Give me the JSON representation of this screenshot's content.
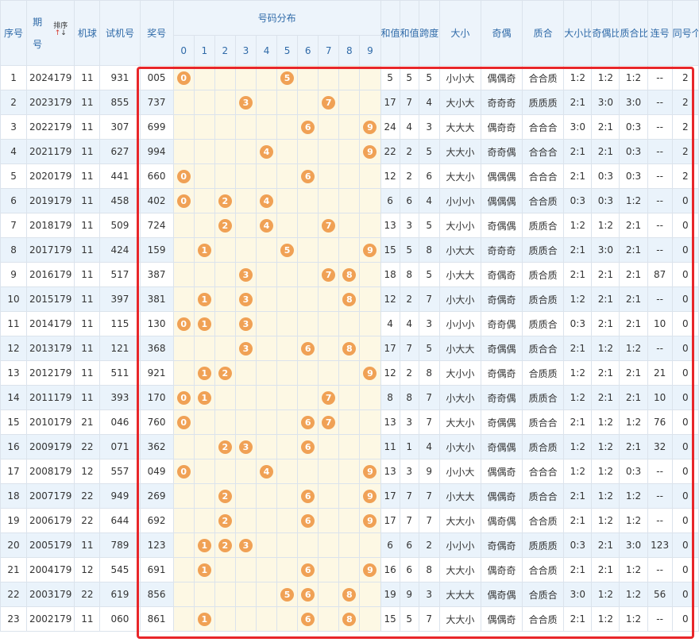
{
  "header": {
    "seq": "序号",
    "period": "期号",
    "sort_label": "排序",
    "machine": "机球",
    "trial": "试机号",
    "prize": "奖号",
    "distribution": "号码分布",
    "digits": [
      "0",
      "1",
      "2",
      "3",
      "4",
      "5",
      "6",
      "7",
      "8",
      "9"
    ],
    "sum": "和值",
    "sum_tail": "和值尾",
    "span": "跨度",
    "size": "大小",
    "odd_even": "奇偶",
    "prime": "质合",
    "size_ratio": "大小比",
    "oe_ratio": "奇偶比",
    "prime_ratio": "质合比",
    "consecutive": "连号",
    "same_count": "同号个数"
  },
  "colors": {
    "ball": "#f0a155",
    "highlight_border": "#e8262a",
    "header_bg": "#edf4fb",
    "digit_bg": "#fdf8e4"
  },
  "rows": [
    {
      "seq": "1",
      "period": "2024179",
      "machine": "11",
      "trial": "931",
      "prize": "005",
      "sum": "5",
      "tail": "5",
      "span": "5",
      "size": "小小大",
      "oe": "偶偶奇",
      "prime": "合合质",
      "sr": "1:2",
      "oer": "1:2",
      "pr": "1:2",
      "cons": "--",
      "same": "2"
    },
    {
      "seq": "2",
      "period": "2023179",
      "machine": "11",
      "trial": "855",
      "prize": "737",
      "sum": "17",
      "tail": "7",
      "span": "4",
      "size": "大小大",
      "oe": "奇奇奇",
      "prime": "质质质",
      "sr": "2:1",
      "oer": "3:0",
      "pr": "3:0",
      "cons": "--",
      "same": "2"
    },
    {
      "seq": "3",
      "period": "2022179",
      "machine": "11",
      "trial": "307",
      "prize": "699",
      "sum": "24",
      "tail": "4",
      "span": "3",
      "size": "大大大",
      "oe": "偶奇奇",
      "prime": "合合合",
      "sr": "3:0",
      "oer": "2:1",
      "pr": "0:3",
      "cons": "--",
      "same": "2"
    },
    {
      "seq": "4",
      "period": "2021179",
      "machine": "11",
      "trial": "627",
      "prize": "994",
      "sum": "22",
      "tail": "2",
      "span": "5",
      "size": "大大小",
      "oe": "奇奇偶",
      "prime": "合合合",
      "sr": "2:1",
      "oer": "2:1",
      "pr": "0:3",
      "cons": "--",
      "same": "2"
    },
    {
      "seq": "5",
      "period": "2020179",
      "machine": "11",
      "trial": "441",
      "prize": "660",
      "sum": "12",
      "tail": "2",
      "span": "6",
      "size": "大大小",
      "oe": "偶偶偶",
      "prime": "合合合",
      "sr": "2:1",
      "oer": "0:3",
      "pr": "0:3",
      "cons": "--",
      "same": "2"
    },
    {
      "seq": "6",
      "period": "2019179",
      "machine": "11",
      "trial": "458",
      "prize": "402",
      "sum": "6",
      "tail": "6",
      "span": "4",
      "size": "小小小",
      "oe": "偶偶偶",
      "prime": "合合质",
      "sr": "0:3",
      "oer": "0:3",
      "pr": "1:2",
      "cons": "--",
      "same": "0"
    },
    {
      "seq": "7",
      "period": "2018179",
      "machine": "11",
      "trial": "509",
      "prize": "724",
      "sum": "13",
      "tail": "3",
      "span": "5",
      "size": "大小小",
      "oe": "奇偶偶",
      "prime": "质质合",
      "sr": "1:2",
      "oer": "1:2",
      "pr": "2:1",
      "cons": "--",
      "same": "0"
    },
    {
      "seq": "8",
      "period": "2017179",
      "machine": "11",
      "trial": "424",
      "prize": "159",
      "sum": "15",
      "tail": "5",
      "span": "8",
      "size": "小大大",
      "oe": "奇奇奇",
      "prime": "质质合",
      "sr": "2:1",
      "oer": "3:0",
      "pr": "2:1",
      "cons": "--",
      "same": "0"
    },
    {
      "seq": "9",
      "period": "2016179",
      "machine": "11",
      "trial": "517",
      "prize": "387",
      "sum": "18",
      "tail": "8",
      "span": "5",
      "size": "小大大",
      "oe": "奇偶奇",
      "prime": "质合质",
      "sr": "2:1",
      "oer": "2:1",
      "pr": "2:1",
      "cons": "87",
      "same": "0"
    },
    {
      "seq": "10",
      "period": "2015179",
      "machine": "11",
      "trial": "397",
      "prize": "381",
      "sum": "12",
      "tail": "2",
      "span": "7",
      "size": "小大小",
      "oe": "奇偶奇",
      "prime": "质合质",
      "sr": "1:2",
      "oer": "2:1",
      "pr": "2:1",
      "cons": "--",
      "same": "0"
    },
    {
      "seq": "11",
      "period": "2014179",
      "machine": "11",
      "trial": "115",
      "prize": "130",
      "sum": "4",
      "tail": "4",
      "span": "3",
      "size": "小小小",
      "oe": "奇奇偶",
      "prime": "质质合",
      "sr": "0:3",
      "oer": "2:1",
      "pr": "2:1",
      "cons": "10",
      "same": "0"
    },
    {
      "seq": "12",
      "period": "2013179",
      "machine": "11",
      "trial": "121",
      "prize": "368",
      "sum": "17",
      "tail": "7",
      "span": "5",
      "size": "小大大",
      "oe": "奇偶偶",
      "prime": "质合合",
      "sr": "2:1",
      "oer": "1:2",
      "pr": "1:2",
      "cons": "--",
      "same": "0"
    },
    {
      "seq": "13",
      "period": "2012179",
      "machine": "11",
      "trial": "511",
      "prize": "921",
      "sum": "12",
      "tail": "2",
      "span": "8",
      "size": "大小小",
      "oe": "奇偶奇",
      "prime": "合质质",
      "sr": "1:2",
      "oer": "2:1",
      "pr": "2:1",
      "cons": "21",
      "same": "0"
    },
    {
      "seq": "14",
      "period": "2011179",
      "machine": "11",
      "trial": "393",
      "prize": "170",
      "sum": "8",
      "tail": "8",
      "span": "7",
      "size": "小大小",
      "oe": "奇奇偶",
      "prime": "质质合",
      "sr": "1:2",
      "oer": "2:1",
      "pr": "2:1",
      "cons": "10",
      "same": "0"
    },
    {
      "seq": "15",
      "period": "2010179",
      "machine": "21",
      "trial": "046",
      "prize": "760",
      "sum": "13",
      "tail": "3",
      "span": "7",
      "size": "大大小",
      "oe": "奇偶偶",
      "prime": "质合合",
      "sr": "2:1",
      "oer": "1:2",
      "pr": "1:2",
      "cons": "76",
      "same": "0"
    },
    {
      "seq": "16",
      "period": "2009179",
      "machine": "22",
      "trial": "071",
      "prize": "362",
      "sum": "11",
      "tail": "1",
      "span": "4",
      "size": "小大小",
      "oe": "奇偶偶",
      "prime": "质合质",
      "sr": "1:2",
      "oer": "1:2",
      "pr": "2:1",
      "cons": "32",
      "same": "0"
    },
    {
      "seq": "17",
      "period": "2008179",
      "machine": "12",
      "trial": "557",
      "prize": "049",
      "sum": "13",
      "tail": "3",
      "span": "9",
      "size": "小小大",
      "oe": "偶偶奇",
      "prime": "合合合",
      "sr": "1:2",
      "oer": "1:2",
      "pr": "0:3",
      "cons": "--",
      "same": "0"
    },
    {
      "seq": "18",
      "period": "2007179",
      "machine": "22",
      "trial": "949",
      "prize": "269",
      "sum": "17",
      "tail": "7",
      "span": "7",
      "size": "小大大",
      "oe": "偶偶奇",
      "prime": "质合合",
      "sr": "2:1",
      "oer": "1:2",
      "pr": "1:2",
      "cons": "--",
      "same": "0"
    },
    {
      "seq": "19",
      "period": "2006179",
      "machine": "22",
      "trial": "644",
      "prize": "692",
      "sum": "17",
      "tail": "7",
      "span": "7",
      "size": "大大小",
      "oe": "偶奇偶",
      "prime": "合合质",
      "sr": "2:1",
      "oer": "1:2",
      "pr": "1:2",
      "cons": "--",
      "same": "0"
    },
    {
      "seq": "20",
      "period": "2005179",
      "machine": "11",
      "trial": "789",
      "prize": "123",
      "sum": "6",
      "tail": "6",
      "span": "2",
      "size": "小小小",
      "oe": "奇偶奇",
      "prime": "质质质",
      "sr": "0:3",
      "oer": "2:1",
      "pr": "3:0",
      "cons": "123",
      "same": "0"
    },
    {
      "seq": "21",
      "period": "2004179",
      "machine": "12",
      "trial": "545",
      "prize": "691",
      "sum": "16",
      "tail": "6",
      "span": "8",
      "size": "大大小",
      "oe": "偶奇奇",
      "prime": "合合质",
      "sr": "2:1",
      "oer": "2:1",
      "pr": "1:2",
      "cons": "--",
      "same": "0"
    },
    {
      "seq": "22",
      "period": "2003179",
      "machine": "22",
      "trial": "619",
      "prize": "856",
      "sum": "19",
      "tail": "9",
      "span": "3",
      "size": "大大大",
      "oe": "偶奇偶",
      "prime": "合质合",
      "sr": "3:0",
      "oer": "1:2",
      "pr": "1:2",
      "cons": "56",
      "same": "0"
    },
    {
      "seq": "23",
      "period": "2002179",
      "machine": "11",
      "trial": "060",
      "prize": "861",
      "sum": "15",
      "tail": "5",
      "span": "7",
      "size": "大大小",
      "oe": "偶偶奇",
      "prime": "合合质",
      "sr": "2:1",
      "oer": "1:2",
      "pr": "1:2",
      "cons": "--",
      "same": "0"
    }
  ]
}
